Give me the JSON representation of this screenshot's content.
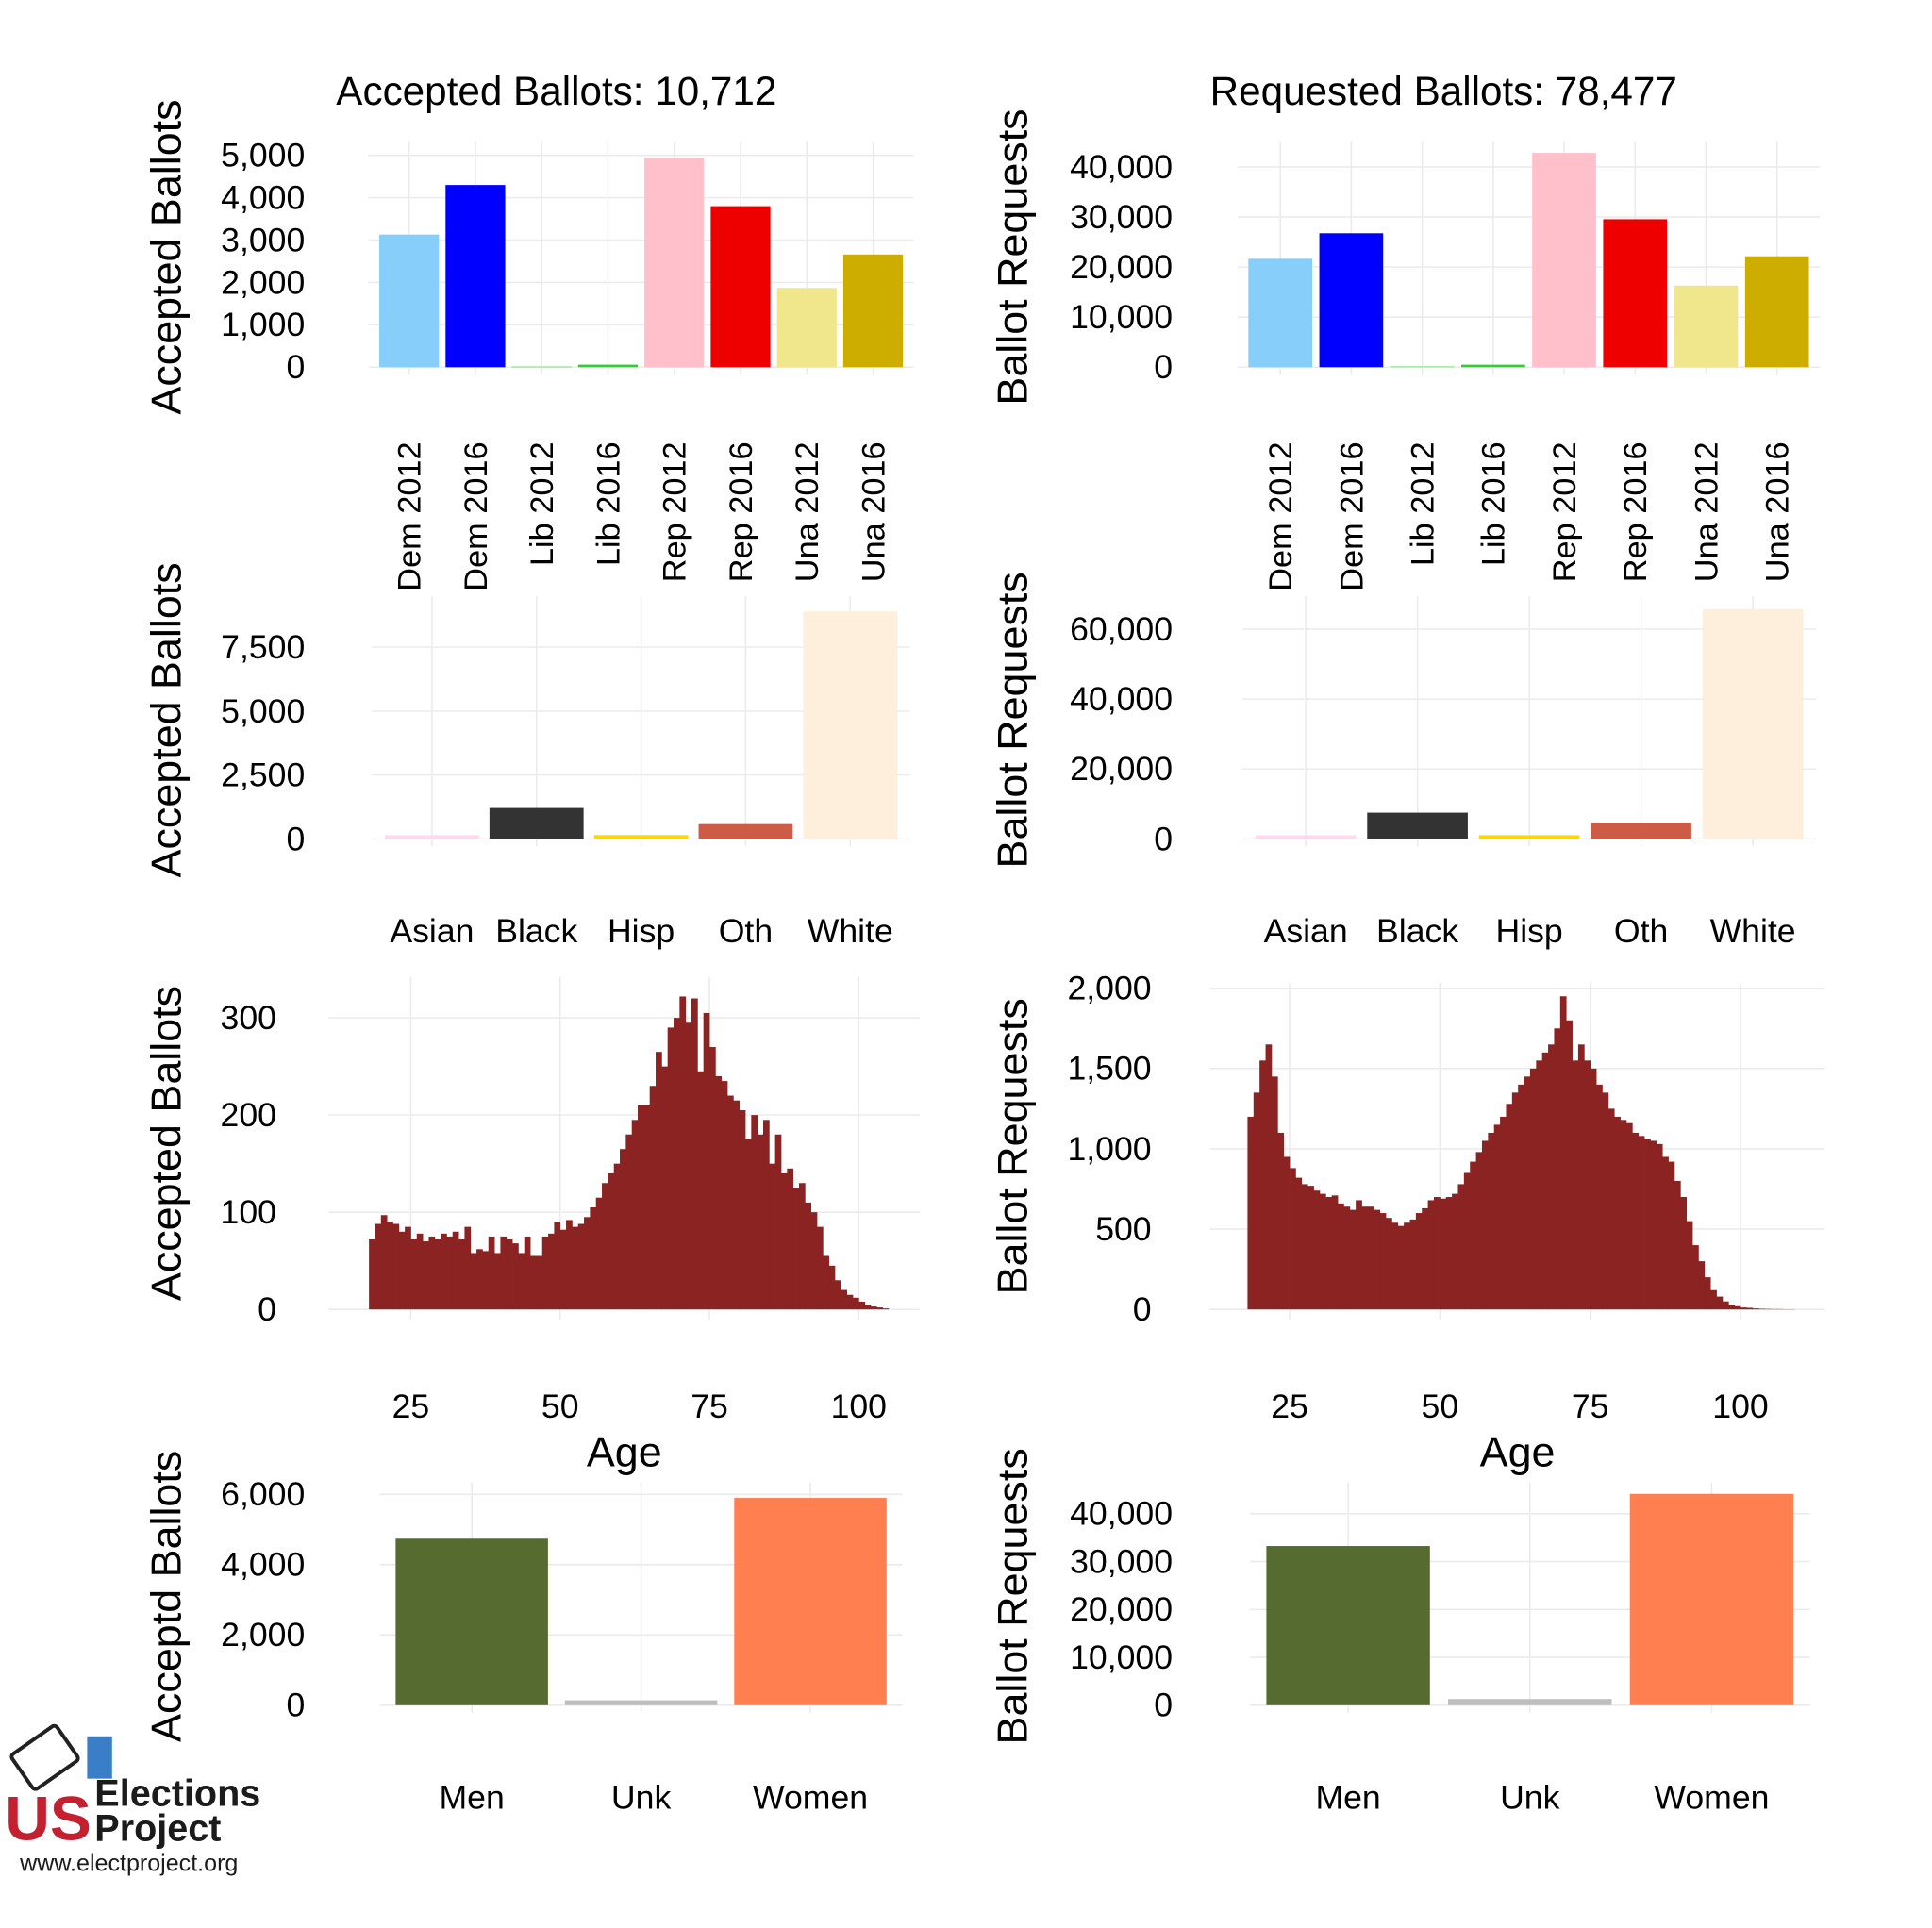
{
  "chart_data": [
    {
      "type": "bar",
      "title": "Accepted Ballots:  10,712",
      "y_label": "Accepted Ballots",
      "categories": [
        "Dem 2012",
        "Dem 2016",
        "Lib 2012",
        "Lib 2016",
        "Rep 2012",
        "Rep 2016",
        "Una 2012",
        "Una 2016"
      ],
      "values": [
        3130,
        4300,
        20,
        60,
        4940,
        3800,
        1870,
        2660
      ],
      "colors": [
        "#87cefa",
        "#0000ff",
        "#90ee90",
        "#32cd32",
        "#ffc0cb",
        "#ee0000",
        "#f0e68c",
        "#cdad00"
      ],
      "ylim": [
        0,
        5200
      ],
      "yticks": [
        0,
        {
          "value": 1000,
          "label": "1,000"
        },
        {
          "value": 2000,
          "label": "2,000"
        },
        {
          "value": 3000,
          "label": "3,000"
        },
        {
          "value": 4000,
          "label": "4,000"
        },
        {
          "value": 5000,
          "label": "5,000"
        }
      ],
      "grid": true
    },
    {
      "type": "bar",
      "title": "Requested Ballots:  78,477",
      "y_label": "Ballot Requests",
      "categories": [
        "Dem 2012",
        "Dem 2016",
        "Lib 2012",
        "Lib 2016",
        "Rep 2012",
        "Rep 2016",
        "Una 2012",
        "Una 2016"
      ],
      "values": [
        21650,
        26750,
        200,
        500,
        42800,
        29550,
        16300,
        22150
      ],
      "colors": [
        "#87cefa",
        "#0000ff",
        "#90ee90",
        "#32cd32",
        "#ffc0cb",
        "#ee0000",
        "#f0e68c",
        "#cdad00"
      ],
      "ylim": [
        0,
        44000
      ],
      "yticks": [
        0,
        {
          "value": 10000,
          "label": "10,000"
        },
        {
          "value": 20000,
          "label": "20,000"
        },
        {
          "value": 30000,
          "label": "30,000"
        },
        {
          "value": 40000,
          "label": "40,000"
        }
      ],
      "grid": true
    },
    {
      "type": "bar",
      "y_label": "Accepted Ballots",
      "categories": [
        "Asian",
        "Black",
        "Hisp",
        "Oth",
        "White"
      ],
      "values": [
        150,
        1210,
        150,
        580,
        8900
      ],
      "colors": [
        "#ffd9ef",
        "#333333",
        "#ffd700",
        "#cd5b45",
        "#fdefdc"
      ],
      "ylim": [
        0,
        9300
      ],
      "yticks": [
        0,
        {
          "value": 2500,
          "label": "2,500"
        },
        {
          "value": 5000,
          "label": "5,000"
        },
        {
          "value": 7500,
          "label": "7,500"
        }
      ],
      "grid": true
    },
    {
      "type": "bar",
      "y_label": "Ballot Requests",
      "categories": [
        "Asian",
        "Black",
        "Hisp",
        "Oth",
        "White"
      ],
      "values": [
        1070,
        7500,
        1070,
        4640,
        65700
      ],
      "colors": [
        "#ffd9ef",
        "#333333",
        "#ffd700",
        "#cd5b45",
        "#fdefdc"
      ],
      "ylim": [
        0,
        68000
      ],
      "yticks": [
        0,
        {
          "value": 20000,
          "label": "20,000"
        },
        {
          "value": 40000,
          "label": "40,000"
        },
        {
          "value": 60000,
          "label": "60,000"
        }
      ],
      "grid": true
    },
    {
      "type": "histogram",
      "y_label": "Accepted Ballots",
      "x_label": "Age",
      "color": "#8b2323",
      "bins": [
        18,
        19,
        20,
        21,
        22,
        23,
        24,
        25,
        26,
        27,
        28,
        29,
        30,
        31,
        32,
        33,
        34,
        35,
        36,
        37,
        38,
        39,
        40,
        41,
        42,
        43,
        44,
        45,
        46,
        47,
        48,
        49,
        50,
        51,
        52,
        53,
        54,
        55,
        56,
        57,
        58,
        59,
        60,
        61,
        62,
        63,
        64,
        65,
        66,
        67,
        68,
        69,
        70,
        71,
        72,
        73,
        74,
        75,
        76,
        77,
        78,
        79,
        80,
        81,
        82,
        83,
        84,
        85,
        86,
        87,
        88,
        89,
        90,
        91,
        92,
        93,
        94,
        95,
        96,
        97,
        98,
        99,
        100,
        101,
        102,
        103,
        104,
        105
      ],
      "values": [
        72,
        88,
        97,
        90,
        88,
        80,
        85,
        72,
        78,
        70,
        75,
        72,
        78,
        75,
        80,
        72,
        85,
        58,
        62,
        60,
        75,
        58,
        75,
        72,
        68,
        58,
        75,
        55,
        55,
        75,
        78,
        90,
        82,
        92,
        85,
        88,
        95,
        105,
        115,
        130,
        140,
        150,
        165,
        180,
        195,
        210,
        210,
        230,
        265,
        250,
        290,
        300,
        322,
        295,
        320,
        245,
        305,
        270,
        240,
        235,
        220,
        215,
        205,
        175,
        200,
        180,
        195,
        150,
        180,
        140,
        145,
        125,
        130,
        110,
        100,
        85,
        55,
        45,
        30,
        20,
        15,
        12,
        8,
        5,
        3,
        2,
        1
      ],
      "xlim": [
        12.5,
        109
      ],
      "xticks": [
        25,
        50,
        75,
        100
      ],
      "ylim": [
        0,
        342
      ],
      "yticks": [
        0,
        100,
        200,
        300
      ],
      "grid": true
    },
    {
      "type": "histogram",
      "y_label": "Ballot Requests",
      "x_label": "Age",
      "color": "#8b2323",
      "bins": [
        18,
        19,
        20,
        21,
        22,
        23,
        24,
        25,
        26,
        27,
        28,
        29,
        30,
        31,
        32,
        33,
        34,
        35,
        36,
        37,
        38,
        39,
        40,
        41,
        42,
        43,
        44,
        45,
        46,
        47,
        48,
        49,
        50,
        51,
        52,
        53,
        54,
        55,
        56,
        57,
        58,
        59,
        60,
        61,
        62,
        63,
        64,
        65,
        66,
        67,
        68,
        69,
        70,
        71,
        72,
        73,
        74,
        75,
        76,
        77,
        78,
        79,
        80,
        81,
        82,
        83,
        84,
        85,
        86,
        87,
        88,
        89,
        90,
        91,
        92,
        93,
        94,
        95,
        96,
        97,
        98,
        99,
        100,
        101,
        102,
        103,
        104,
        105,
        106,
        107,
        108,
        109
      ],
      "values": [
        1200,
        1350,
        1550,
        1650,
        1450,
        1100,
        950,
        880,
        820,
        780,
        770,
        740,
        720,
        700,
        710,
        660,
        640,
        620,
        680,
        640,
        640,
        620,
        600,
        570,
        540,
        520,
        540,
        560,
        600,
        630,
        680,
        700,
        690,
        700,
        720,
        780,
        850,
        920,
        980,
        1050,
        1100,
        1150,
        1200,
        1280,
        1350,
        1400,
        1450,
        1500,
        1550,
        1600,
        1650,
        1750,
        1950,
        1800,
        1550,
        1650,
        1550,
        1500,
        1400,
        1350,
        1250,
        1200,
        1180,
        1160,
        1100,
        1080,
        1060,
        1050,
        1030,
        950,
        920,
        800,
        700,
        550,
        400,
        300,
        200,
        120,
        80,
        50,
        30,
        20,
        12,
        10,
        6,
        4,
        3,
        2,
        2,
        1,
        1
      ],
      "xlim": [
        13,
        112.8
      ],
      "xticks": [
        25,
        50,
        75,
        100
      ],
      "ylim": [
        0,
        2031
      ],
      "yticks": [
        0,
        500,
        {
          "value": 1000,
          "label": "1,000"
        },
        {
          "value": 1500,
          "label": "1,500"
        },
        {
          "value": 2000,
          "label": "2,000"
        }
      ],
      "grid": true
    },
    {
      "type": "bar",
      "y_label": "Acceptd Ballots",
      "categories": [
        "Men",
        "Unk",
        "Women"
      ],
      "values": [
        4740,
        140,
        5900
      ],
      "colors": [
        "#556b2f",
        "#bebebe",
        "#ff7f50"
      ],
      "ylim": [
        0,
        6200
      ],
      "yticks": [
        0,
        {
          "value": 2000,
          "label": "2,000"
        },
        {
          "value": 4000,
          "label": "4,000"
        },
        {
          "value": 6000,
          "label": "6,000"
        }
      ],
      "grid": true
    },
    {
      "type": "bar",
      "y_label": "Ballot Requests",
      "categories": [
        "Men",
        "Unk",
        "Women"
      ],
      "values": [
        33250,
        1300,
        44150
      ],
      "colors": [
        "#556b2f",
        "#bebebe",
        "#ff7f50"
      ],
      "ylim": [
        0,
        45500
      ],
      "yticks": [
        0,
        {
          "value": 10000,
          "label": "10,000"
        },
        {
          "value": 20000,
          "label": "20,000"
        },
        {
          "value": 30000,
          "label": "30,000"
        },
        {
          "value": 40000,
          "label": "40,000"
        }
      ],
      "grid": true
    }
  ],
  "logo": {
    "mark": "US",
    "line1": "Elections",
    "line2": "Project",
    "url": "www.electproject.org"
  }
}
